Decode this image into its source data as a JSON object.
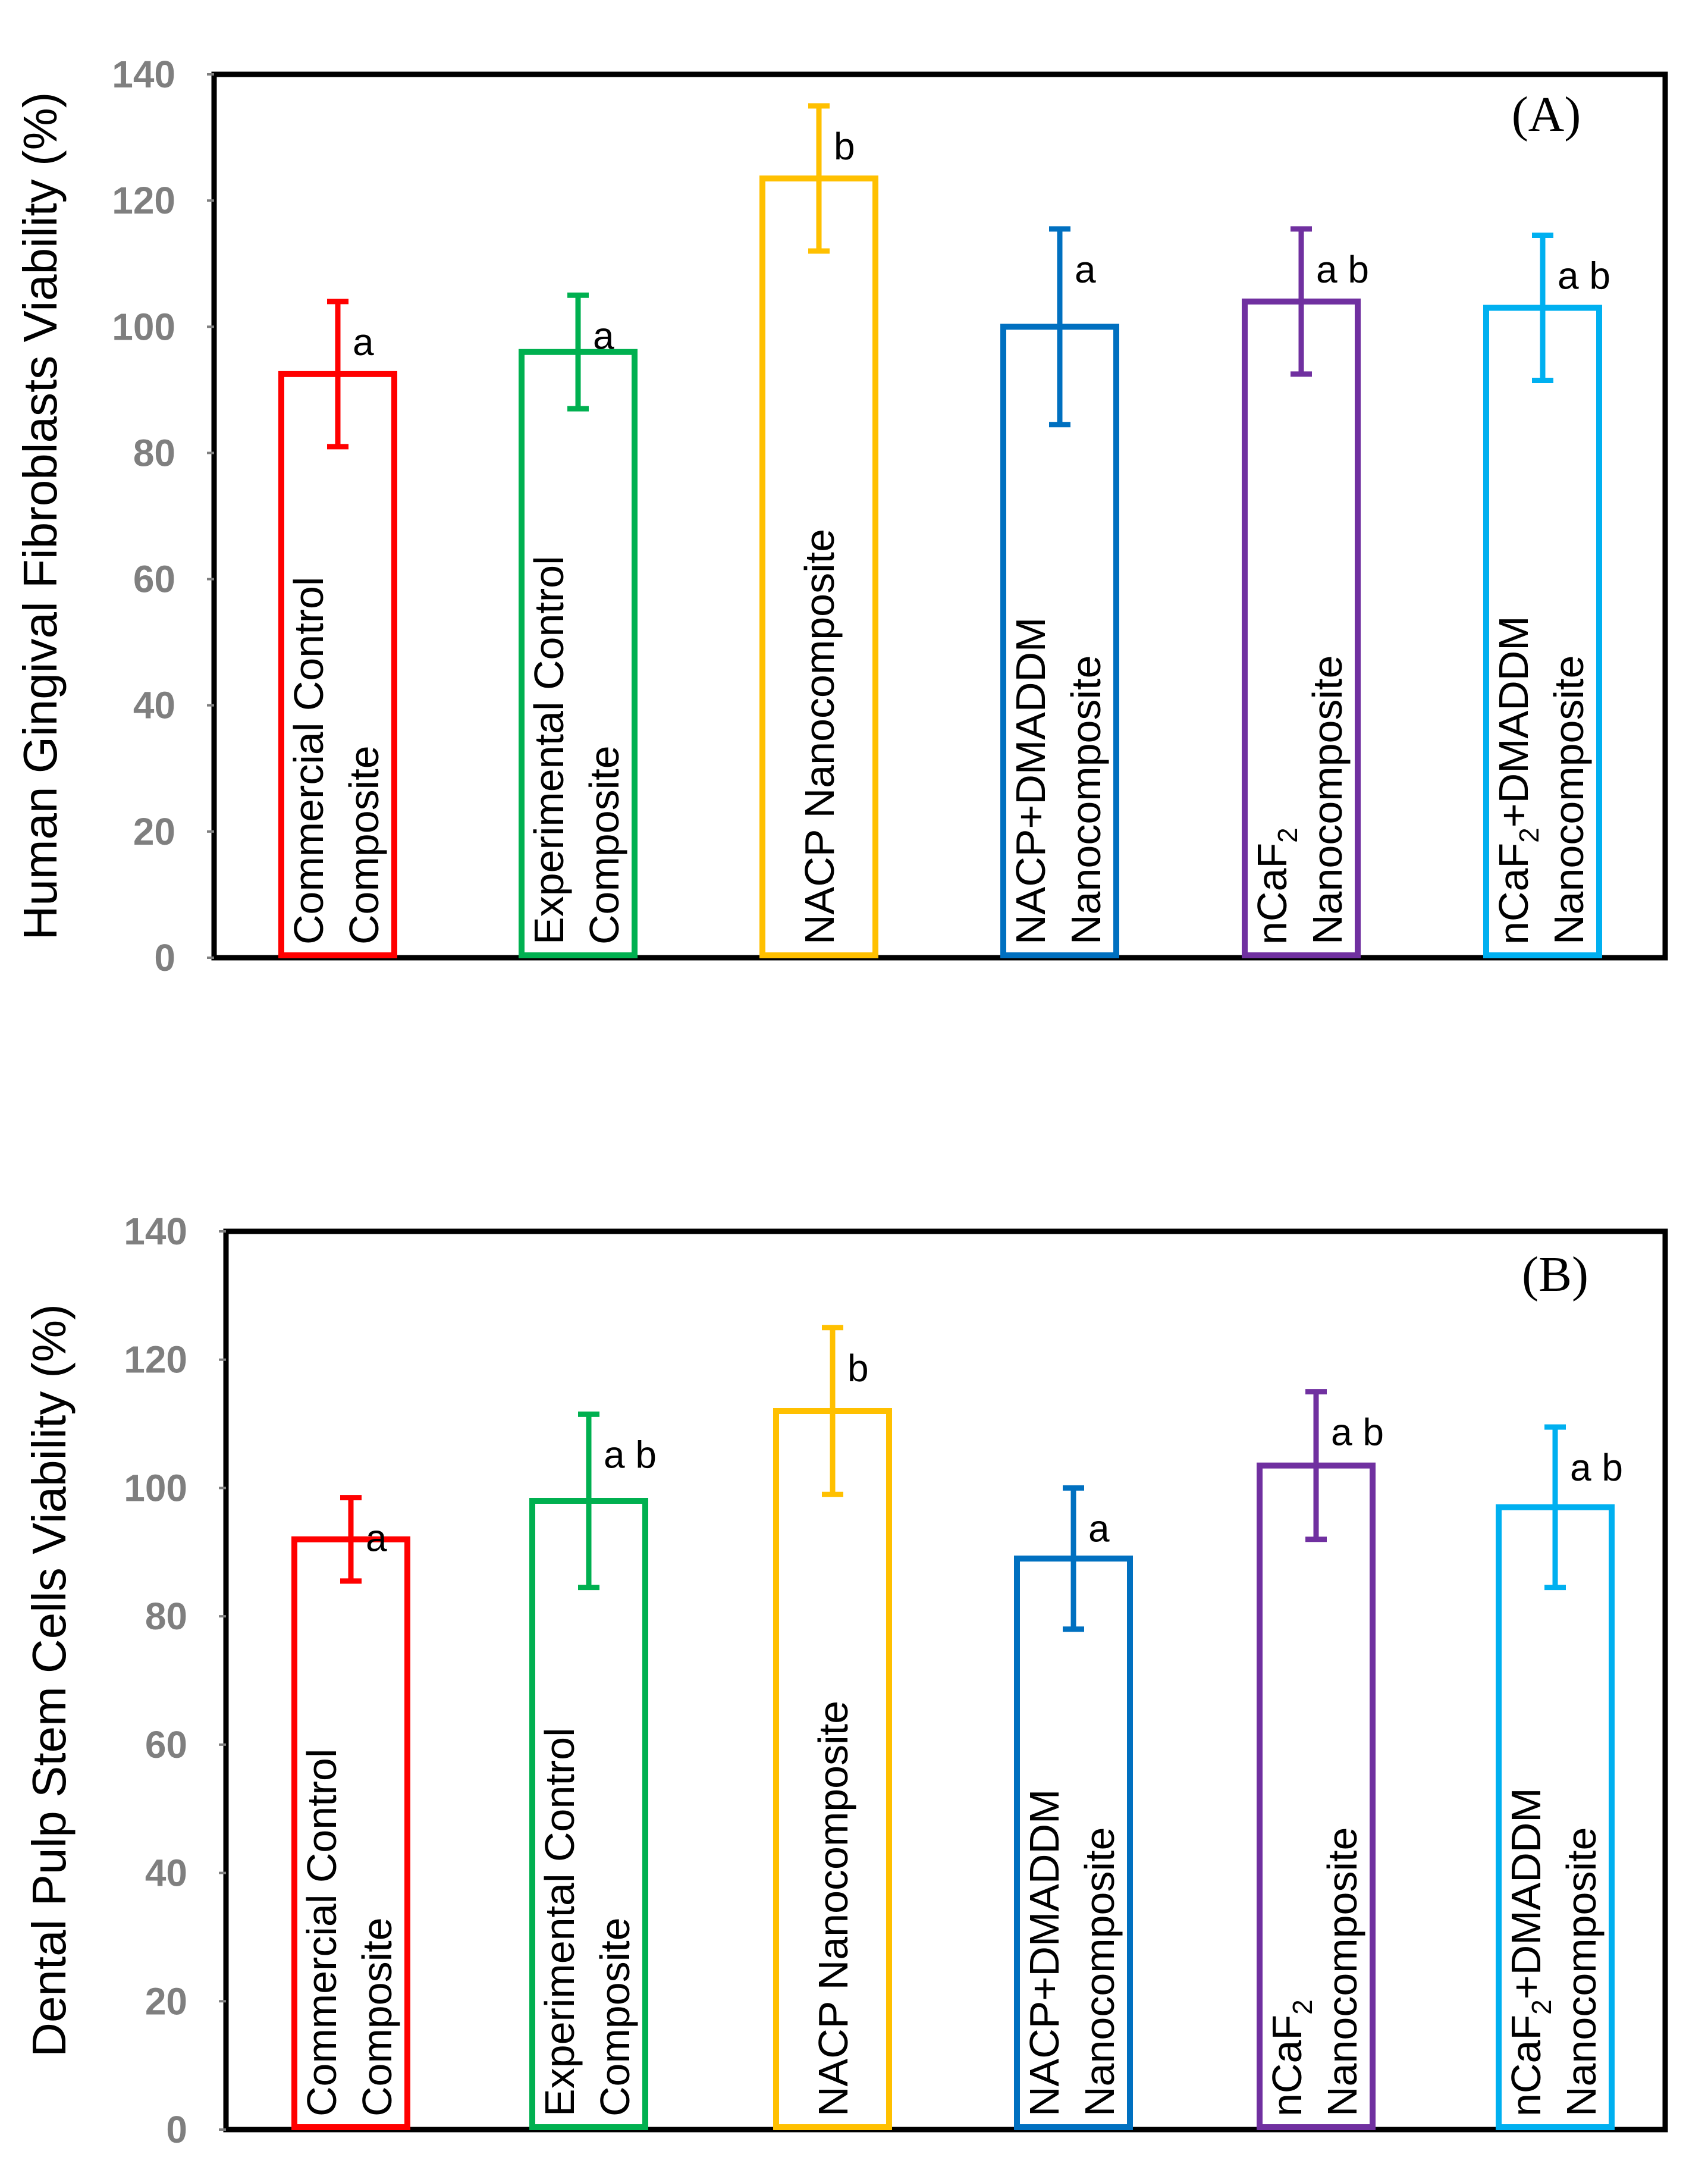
{
  "chart_data": [
    {
      "type": "bar",
      "panel_label": "(A)",
      "ylabel": "Human Gingival Fibroblasts Viability (%)",
      "xlabel": "",
      "ylim": [
        0,
        140
      ],
      "yticks": [
        "0",
        "20",
        "40",
        "60",
        "80",
        "100",
        "120",
        "140"
      ],
      "grid": false,
      "categories": [
        {
          "line1": "Commercial Control",
          "line2": "Composite",
          "sub": ""
        },
        {
          "line1": "Experimental Control",
          "line2": "Composite",
          "sub": ""
        },
        {
          "line1": "NACP Nanocomposite",
          "line2": "",
          "sub": ""
        },
        {
          "line1": "NACP+DMADDM",
          "line2": "Nanocomposite",
          "sub": ""
        },
        {
          "line1": "nCaF",
          "line2": "Nanocomposite",
          "sub": "2"
        },
        {
          "line1": "nCaF",
          "line2": "Nanocomposite",
          "sub": "2",
          "line1_suffix": "+DMADDM"
        }
      ],
      "values": [
        92.5,
        96,
        123.5,
        100,
        104,
        103
      ],
      "errors": [
        11.5,
        9,
        11.5,
        15.5,
        11.5,
        11.5
      ],
      "significance": [
        "a",
        "a",
        "b",
        "a",
        "a b",
        "a b"
      ],
      "colors": [
        "#ff0000",
        "#00b050",
        "#ffc000",
        "#0070c0",
        "#7030a0",
        "#00b0f0"
      ]
    },
    {
      "type": "bar",
      "panel_label": "(B)",
      "ylabel": "Dental Pulp Stem Cells Viability (%)",
      "xlabel": "",
      "ylim": [
        0,
        140
      ],
      "yticks": [
        "0",
        "20",
        "40",
        "60",
        "80",
        "100",
        "120",
        "140"
      ],
      "grid": false,
      "categories": [
        {
          "line1": "Commercial Control",
          "line2": "Composite",
          "sub": ""
        },
        {
          "line1": "Experimental Control",
          "line2": "Composite",
          "sub": ""
        },
        {
          "line1": "NACP Nanocomposite",
          "line2": "",
          "sub": ""
        },
        {
          "line1": "NACP+DMADDM",
          "line2": "Nanocomposite",
          "sub": ""
        },
        {
          "line1": "nCaF",
          "line2": "Nanocomposite",
          "sub": "2"
        },
        {
          "line1": "nCaF",
          "line2": "Nanocomposite",
          "sub": "2",
          "line1_suffix": "+DMADDM"
        }
      ],
      "values": [
        92,
        98,
        112,
        89,
        103.5,
        97
      ],
      "errors": [
        6.5,
        13.5,
        13,
        11,
        11.5,
        12.5
      ],
      "significance": [
        "a",
        "a b",
        "b",
        "a",
        "a b",
        "a b"
      ],
      "colors": [
        "#ff0000",
        "#00b050",
        "#ffc000",
        "#0070c0",
        "#7030a0",
        "#00b0f0"
      ]
    }
  ]
}
